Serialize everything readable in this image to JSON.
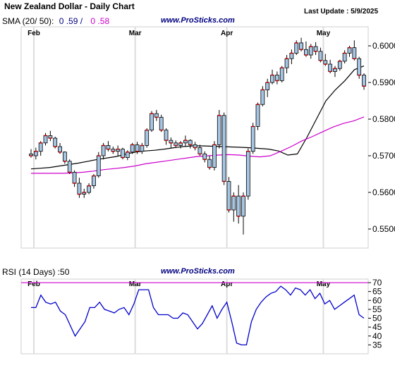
{
  "header": {
    "title": "New Zealand Dollar - Daily Chart",
    "last_update": "Last Update : 5/9/2025",
    "sma_label": "SMA (20/ 50):",
    "sma20_value": "0 .59 /",
    "sma50_value": "0 .58",
    "watermark": "www.ProSticks.com"
  },
  "colors": {
    "candle_body": "#a7c6e4",
    "candle_wick": "#000000",
    "candle_marker": "#cc0000",
    "sma20": "#000000",
    "sma50": "#cc00cc",
    "rsi_line": "#0000cc",
    "rsi_level_line": "#cc00cc",
    "grid": "#dcdcdc",
    "watermark": "#000080"
  },
  "rsi_panel": {
    "label": "RSI (14 Days) :50",
    "watermark": "www.ProSticks.com"
  },
  "chart_data": [
    {
      "type": "candlestick",
      "title": "New Zealand Dollar - Daily Chart",
      "x_labels": [
        "Feb",
        "Mar",
        "Apr",
        "May"
      ],
      "y_ticks": [
        "0.5500",
        "0.5600",
        "0.5700",
        "0.5800",
        "0.5900",
        "0.6000"
      ],
      "ylim": [
        0.5448,
        0.6052
      ],
      "grid": "vertical at month starts",
      "legend": "none",
      "series": [
        {
          "name": "Price",
          "kind": "ohlc",
          "values": [
            [
              0.5705,
              0.5718,
              0.5695,
              0.57
            ],
            [
              0.57,
              0.5722,
              0.569,
              0.5712
            ],
            [
              0.5712,
              0.574,
              0.57,
              0.5735
            ],
            [
              0.5735,
              0.5762,
              0.5728,
              0.5755
            ],
            [
              0.5755,
              0.5768,
              0.574,
              0.5748
            ],
            [
              0.5748,
              0.5752,
              0.572,
              0.5725
            ],
            [
              0.5725,
              0.5735,
              0.5705,
              0.571
            ],
            [
              0.571,
              0.5712,
              0.5678,
              0.5685
            ],
            [
              0.5685,
              0.569,
              0.565,
              0.5655
            ],
            [
              0.5655,
              0.566,
              0.5615,
              0.5625
            ],
            [
              0.5625,
              0.564,
              0.5585,
              0.5595
            ],
            [
              0.5595,
              0.561,
              0.5585,
              0.56
            ],
            [
              0.56,
              0.5625,
              0.5595,
              0.5618
            ],
            [
              0.5618,
              0.565,
              0.561,
              0.5645
            ],
            [
              0.5645,
              0.571,
              0.564,
              0.57
            ],
            [
              0.57,
              0.5735,
              0.569,
              0.5728
            ],
            [
              0.5728,
              0.574,
              0.5712,
              0.5718
            ],
            [
              0.5718,
              0.5725,
              0.5705,
              0.5712
            ],
            [
              0.5712,
              0.5728,
              0.57,
              0.5718
            ],
            [
              0.5718,
              0.5722,
              0.569,
              0.5695
            ],
            [
              0.5695,
              0.5715,
              0.5688,
              0.571
            ],
            [
              0.571,
              0.5735,
              0.5705,
              0.573
            ],
            [
              0.573,
              0.5738,
              0.5705,
              0.5712
            ],
            [
              0.5712,
              0.5735,
              0.5705,
              0.5728
            ],
            [
              0.5728,
              0.5775,
              0.5722,
              0.577
            ],
            [
              0.577,
              0.5822,
              0.5765,
              0.5815
            ],
            [
              0.5815,
              0.5825,
              0.5795,
              0.5805
            ],
            [
              0.5805,
              0.5812,
              0.5765,
              0.577
            ],
            [
              0.577,
              0.5775,
              0.573,
              0.5742
            ],
            [
              0.5742,
              0.575,
              0.5722,
              0.5735
            ],
            [
              0.5735,
              0.5742,
              0.5722,
              0.5728
            ],
            [
              0.5728,
              0.574,
              0.572,
              0.5735
            ],
            [
              0.5735,
              0.5755,
              0.5725,
              0.5742
            ],
            [
              0.5742,
              0.5745,
              0.572,
              0.573
            ],
            [
              0.573,
              0.5738,
              0.5715,
              0.5722
            ],
            [
              0.5722,
              0.573,
              0.57,
              0.5705
            ],
            [
              0.5705,
              0.5712,
              0.5682,
              0.569
            ],
            [
              0.569,
              0.57,
              0.5662,
              0.5668
            ],
            [
              0.5668,
              0.574,
              0.566,
              0.573
            ],
            [
              0.573,
              0.5825,
              0.572,
              0.581
            ],
            [
              0.581,
              0.5818,
              0.562,
              0.563
            ],
            [
              0.563,
              0.5642,
              0.5545,
              0.5552
            ],
            [
              0.5552,
              0.56,
              0.552,
              0.559
            ],
            [
              0.559,
              0.562,
              0.5515,
              0.5535
            ],
            [
              0.5535,
              0.56,
              0.5485,
              0.559
            ],
            [
              0.559,
              0.572,
              0.558,
              0.5712
            ],
            [
              0.5712,
              0.579,
              0.5705,
              0.578
            ],
            [
              0.578,
              0.5845,
              0.577,
              0.584
            ],
            [
              0.584,
              0.589,
              0.5835,
              0.588
            ],
            [
              0.588,
              0.591,
              0.586,
              0.59
            ],
            [
              0.59,
              0.5935,
              0.5895,
              0.592
            ],
            [
              0.592,
              0.593,
              0.5895,
              0.5905
            ],
            [
              0.5905,
              0.5945,
              0.59,
              0.594
            ],
            [
              0.594,
              0.5975,
              0.5925,
              0.5965
            ],
            [
              0.5965,
              0.599,
              0.595,
              0.598
            ],
            [
              0.598,
              0.6015,
              0.5975,
              0.6008
            ],
            [
              0.6008,
              0.6022,
              0.5985,
              0.599
            ],
            [
              0.599,
              0.6012,
              0.597,
              0.5975
            ],
            [
              0.5975,
              0.6005,
              0.5965,
              0.5998
            ],
            [
              0.5998,
              0.601,
              0.5975,
              0.5985
            ],
            [
              0.5985,
              0.5995,
              0.5955,
              0.596
            ],
            [
              0.596,
              0.5978,
              0.5945,
              0.595
            ],
            [
              0.595,
              0.5962,
              0.5925,
              0.593
            ],
            [
              0.593,
              0.5945,
              0.5915,
              0.5938
            ],
            [
              0.5938,
              0.5962,
              0.5932,
              0.5958
            ],
            [
              0.5958,
              0.5988,
              0.5952,
              0.598
            ],
            [
              0.598,
              0.6,
              0.597,
              0.5995
            ],
            [
              0.5995,
              0.6015,
              0.596,
              0.5965
            ],
            [
              0.5965,
              0.597,
              0.591,
              0.592
            ],
            [
              0.592,
              0.5925,
              0.588,
              0.589
            ]
          ]
        },
        {
          "name": "SMA 20",
          "kind": "line",
          "values": [
            0.5664,
            0.5666,
            0.5668,
            0.5672,
            0.5676,
            0.568,
            0.5685,
            0.569,
            0.5694,
            0.5698,
            0.5705,
            0.571,
            0.5713,
            0.5715,
            0.5718,
            0.5722,
            0.5725,
            0.5727,
            0.5727,
            0.5726,
            0.5725,
            0.5724,
            0.5723,
            0.5722,
            0.572,
            0.5718,
            0.5713,
            0.5702,
            0.5705,
            0.575,
            0.58,
            0.585,
            0.588,
            0.5905,
            0.5935,
            0.5945
          ]
        },
        {
          "name": "SMA 50",
          "kind": "line",
          "values": [
            0.5652,
            0.5652,
            0.5652,
            0.5652,
            0.5653,
            0.5655,
            0.5658,
            0.5662,
            0.5665,
            0.5668,
            0.5672,
            0.5678,
            0.5682,
            0.5686,
            0.569,
            0.5694,
            0.5698,
            0.57,
            0.5702,
            0.5703,
            0.5702,
            0.5699,
            0.5697,
            0.57,
            0.5712,
            0.5725,
            0.574,
            0.5752,
            0.5765,
            0.5778,
            0.5788,
            0.5795,
            0.5806
          ]
        }
      ]
    },
    {
      "type": "line",
      "title": "RSI (14 Days) :50",
      "x_labels": [
        "Feb",
        "Mar",
        "Apr",
        "May"
      ],
      "y_ticks": [
        "35",
        "40",
        "45",
        "50",
        "55",
        "60",
        "65",
        "70"
      ],
      "ylim": [
        30,
        72
      ],
      "reference_line": 70,
      "legend": "none",
      "series": [
        {
          "name": "RSI",
          "values": [
            56,
            56,
            63,
            59,
            58,
            59,
            54,
            52,
            46,
            40,
            44,
            48,
            56,
            56,
            59,
            55,
            54,
            53,
            55,
            56,
            52,
            58,
            66,
            66,
            66,
            56,
            52,
            52,
            52,
            50,
            50,
            53,
            52,
            48,
            44,
            47,
            52,
            57,
            50,
            55,
            59,
            48,
            36,
            35,
            35,
            48,
            55,
            59,
            62,
            64,
            65,
            68,
            66,
            63,
            67,
            66,
            63,
            66,
            61,
            64,
            58,
            60,
            55,
            57,
            59,
            61,
            63,
            52,
            50
          ]
        }
      ]
    }
  ]
}
